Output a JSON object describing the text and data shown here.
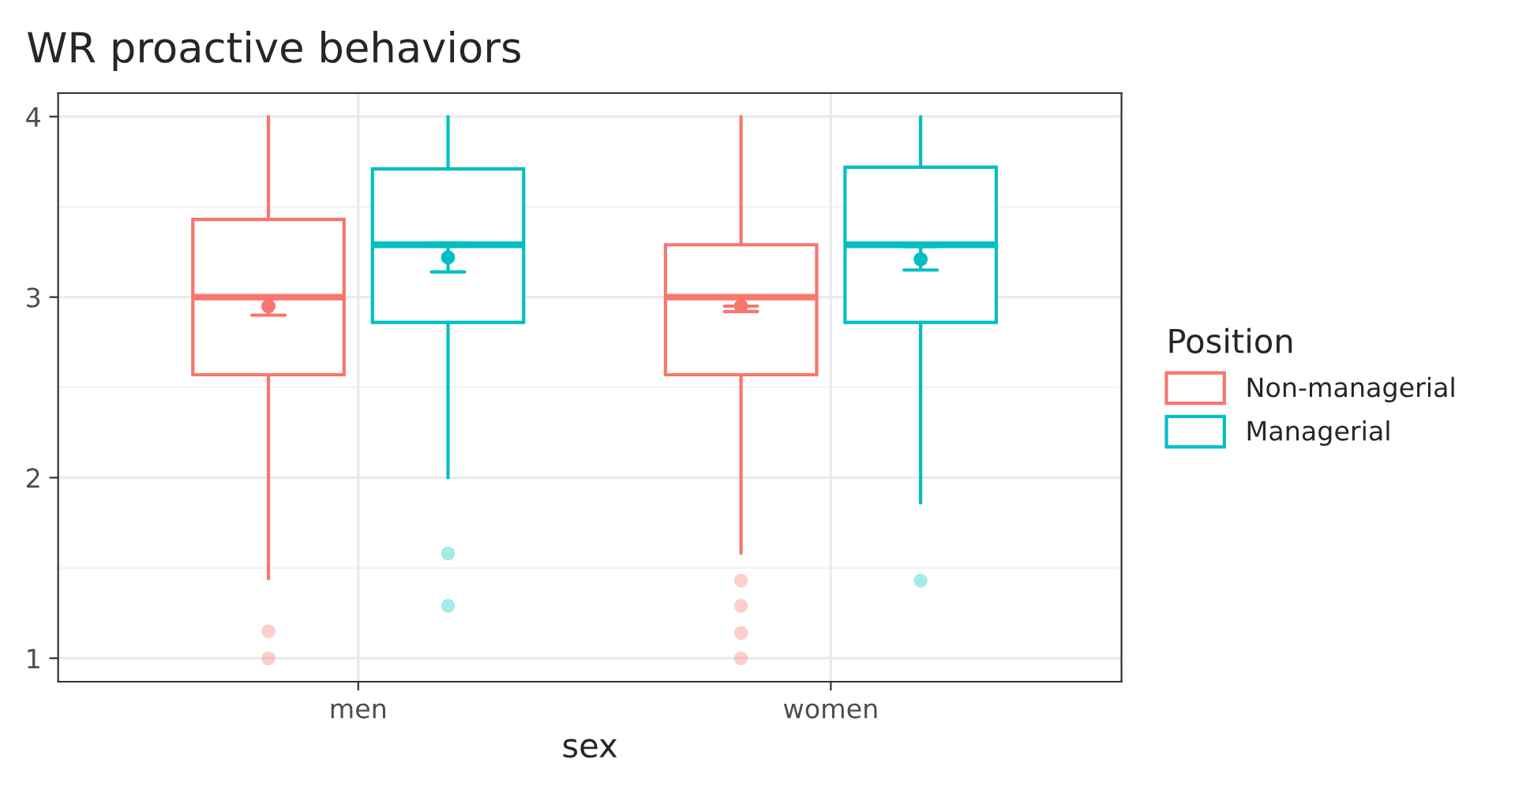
{
  "chart_data": {
    "type": "box",
    "title": "WR proactive behaviors",
    "xlabel": "sex",
    "legend_title": "Position",
    "categories": [
      "men",
      "women"
    ],
    "ylim": [
      0.87,
      4.13
    ],
    "yticks": [
      1,
      2,
      3,
      4
    ],
    "grid": true,
    "legend": "right",
    "series": [
      {
        "type": "box",
        "name": "Non-managerial",
        "color": "#f8766d",
        "boxes": [
          {
            "low": 1.44,
            "q1": 2.57,
            "median": 3.0,
            "q3": 3.43,
            "high": 4.0,
            "outliers": [
              1.15,
              1.0
            ]
          },
          {
            "low": 1.58,
            "q1": 2.57,
            "median": 3.0,
            "q3": 3.29,
            "high": 4.0,
            "outliers": [
              1.43,
              1.29,
              1.14,
              1.0
            ]
          }
        ]
      },
      {
        "type": "box",
        "name": "Managerial",
        "color": "#00bfc4",
        "boxes": [
          {
            "low": 2.0,
            "q1": 2.86,
            "median": 3.29,
            "q3": 3.71,
            "high": 4.0,
            "outliers": [
              1.58,
              1.29
            ]
          },
          {
            "low": 1.86,
            "q1": 2.86,
            "median": 3.29,
            "q3": 3.72,
            "high": 4.0,
            "outliers": [
              1.43
            ]
          }
        ]
      },
      {
        "type": "scatter",
        "color": "#f8766d",
        "x": [
          "men",
          "women"
        ],
        "values": [
          2.95,
          2.95
        ],
        "errors": [
          [
            2.9,
            3.0
          ],
          [
            2.92,
            2.95
          ]
        ]
      },
      {
        "type": "scatter",
        "color": "#00bfc4",
        "x": [
          "men",
          "women"
        ],
        "values": [
          3.22,
          3.21
        ],
        "errors": [
          [
            3.14,
            3.3
          ],
          [
            3.15,
            3.28
          ]
        ]
      }
    ]
  }
}
